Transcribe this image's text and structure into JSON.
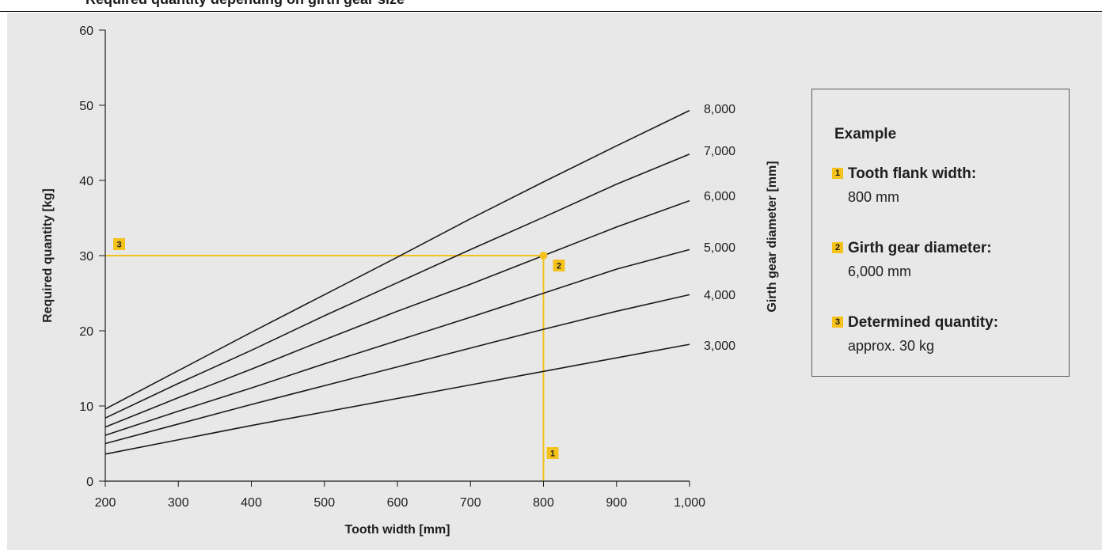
{
  "header": {
    "title": "Required quantity depending on girth gear size"
  },
  "chart_data": {
    "type": "line",
    "xlabel": "Tooth width [mm]",
    "ylabel": "Required quantity [kg]",
    "y2label": "Girth gear diameter [mm]",
    "xlim": [
      200,
      1000
    ],
    "ylim": [
      0,
      60
    ],
    "x": [
      200,
      300,
      400,
      500,
      600,
      700,
      800,
      900,
      1000
    ],
    "x_tick_labels": [
      "200",
      "300",
      "400",
      "500",
      "600",
      "700",
      "800",
      "900",
      "1,000"
    ],
    "y_ticks": [
      0,
      10,
      20,
      30,
      40,
      50,
      60
    ],
    "y_tick_labels": [
      "0",
      "10",
      "20",
      "30",
      "40",
      "50",
      "60"
    ],
    "series": [
      {
        "name": "3,000",
        "values": [
          3.6,
          5.5,
          7.4,
          9.2,
          11.0,
          12.8,
          14.6,
          16.4,
          18.2
        ]
      },
      {
        "name": "4,000",
        "values": [
          5.0,
          7.6,
          10.2,
          12.7,
          15.2,
          17.7,
          20.2,
          22.6,
          24.8
        ]
      },
      {
        "name": "5,000",
        "values": [
          6.1,
          9.3,
          12.4,
          15.6,
          18.7,
          21.8,
          25.0,
          28.2,
          30.8
        ]
      },
      {
        "name": "6,000",
        "values": [
          7.2,
          11.1,
          14.9,
          18.8,
          22.6,
          26.2,
          30.0,
          33.8,
          37.3
        ]
      },
      {
        "name": "7,000",
        "values": [
          8.4,
          13.0,
          17.4,
          22.0,
          26.4,
          30.8,
          35.1,
          39.5,
          43.5
        ]
      },
      {
        "name": "8,000",
        "values": [
          9.6,
          14.7,
          19.8,
          24.8,
          29.8,
          34.9,
          39.8,
          44.6,
          49.3
        ]
      }
    ],
    "example_point": {
      "x": 800,
      "y": 30
    },
    "markers": [
      "1",
      "2",
      "3"
    ],
    "colors": {
      "example": "#f4c21a",
      "lines": "#1a1a1a",
      "background": "#e8e8e8"
    }
  },
  "legend": {
    "title": "Example",
    "items": [
      {
        "badge": "1",
        "label": "Tooth flank width:",
        "value": "800 mm"
      },
      {
        "badge": "2",
        "label": "Girth gear diameter:",
        "value": "6,000 mm"
      },
      {
        "badge": "3",
        "label": "Determined quantity:",
        "value": "approx. 30 kg"
      }
    ]
  }
}
